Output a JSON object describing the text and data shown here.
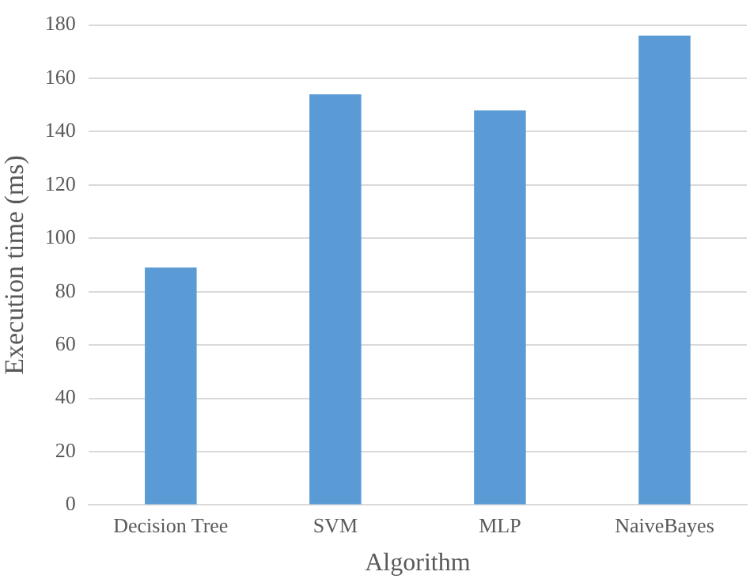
{
  "chart_data": {
    "type": "bar",
    "xlabel": "Algorithm",
    "ylabel": "Execution time (ms)",
    "categories": [
      "Decision Tree",
      "SVM",
      "MLP",
      "NaiveBayes"
    ],
    "values": [
      89,
      154,
      148,
      176
    ],
    "color": "#5b9bd5",
    "ylim": [
      0,
      180
    ],
    "yticks": [
      0,
      20,
      40,
      60,
      80,
      100,
      120,
      140,
      160,
      180
    ],
    "grid": "y"
  }
}
